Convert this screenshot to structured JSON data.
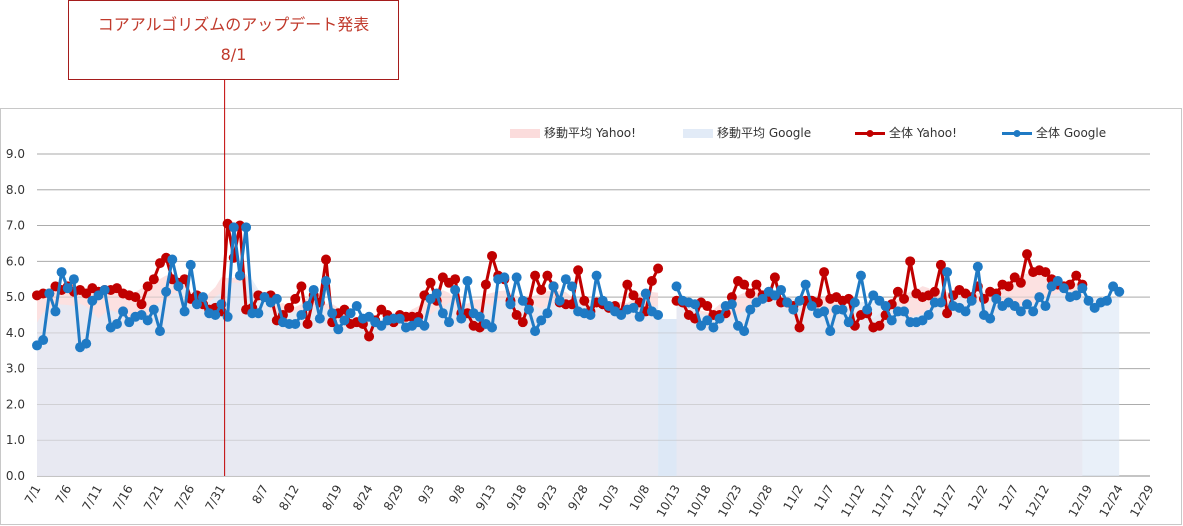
{
  "annotation": {
    "title": "コアアルゴリズムのアップデート発表",
    "date_label": "8/1"
  },
  "colors": {
    "yahoo_line": "#c00000",
    "google_line": "#1f7ac4",
    "yahoo_avg_fill": "#fbdcdc",
    "google_avg_fill": "#e2ebf7",
    "annotation_line": "#c00000"
  },
  "chart_data": {
    "type": "line",
    "title": "",
    "xlabel": "",
    "ylabel": "",
    "ylim": [
      0,
      9
    ],
    "grid": true,
    "legend_position": "top-right",
    "y_ticks": [
      "0.0",
      "1.0",
      "2.0",
      "3.0",
      "4.0",
      "5.0",
      "6.0",
      "7.0",
      "8.0",
      "9.0"
    ],
    "x_tick_labels": [
      "7/1",
      "7/6",
      "7/11",
      "7/16",
      "7/21",
      "7/26",
      "7/31",
      "8/7",
      "8/12",
      "8/19",
      "8/24",
      "8/29",
      "9/3",
      "9/8",
      "9/13",
      "9/18",
      "9/23",
      "9/28",
      "10/3",
      "10/8",
      "10/13",
      "10/18",
      "10/23",
      "10/28",
      "11/2",
      "11/7",
      "11/12",
      "11/17",
      "11/22",
      "11/27",
      "12/2",
      "12/7",
      "12/12",
      "12/19",
      "12/24",
      "12/29"
    ],
    "x_start": "7/1",
    "x_end": "12/29",
    "gap_range": [
      "10/10",
      "10/13"
    ],
    "annotation_x": "8/1",
    "series": [
      {
        "name": "全体 Yahoo!",
        "kind": "line",
        "values": [
          5.05,
          5.1,
          5.1,
          5.3,
          5.2,
          5.3,
          5.15,
          5.2,
          5.1,
          5.25,
          5.15,
          5.2,
          5.2,
          5.25,
          5.1,
          5.05,
          5.0,
          4.8,
          5.3,
          5.5,
          5.95,
          6.1,
          5.5,
          5.4,
          5.5,
          4.95,
          5.05,
          4.8,
          4.65,
          4.7,
          4.6,
          7.05,
          6.1,
          7.0,
          4.65,
          4.7,
          5.05,
          5.0,
          5.05,
          4.35,
          4.5,
          4.7,
          4.95,
          5.3,
          4.25,
          5.05,
          4.85,
          6.05,
          4.3,
          4.55,
          4.65,
          4.25,
          4.3,
          4.25,
          3.9,
          4.35,
          4.65,
          4.5,
          4.3,
          4.5,
          4.45,
          4.45,
          4.45,
          5.05,
          5.4,
          4.9,
          5.55,
          5.4,
          5.5,
          4.55,
          4.55,
          4.2,
          4.15,
          5.35,
          6.15,
          5.6,
          5.5,
          4.9,
          4.5,
          4.3,
          4.85,
          5.6,
          5.2,
          5.6,
          5.3,
          4.85,
          4.8,
          4.8,
          5.75,
          4.9,
          4.6,
          4.85,
          4.8,
          4.7,
          4.75,
          4.55,
          5.35,
          5.05,
          4.85,
          4.6,
          5.45,
          5.8,
          5.2,
          5.05,
          4.9,
          4.85,
          4.5,
          4.4,
          4.85,
          4.75,
          4.5,
          4.5,
          4.55,
          5.0,
          5.45,
          5.35,
          5.1,
          5.35,
          5.05,
          5.0,
          5.55,
          4.85,
          4.85,
          4.75,
          4.15,
          4.9,
          4.9,
          4.85,
          5.7,
          4.95,
          5.0,
          4.9,
          4.95,
          4.2,
          4.5,
          4.55,
          4.15,
          4.2,
          4.5,
          4.8,
          5.15,
          4.95,
          6.0,
          5.1,
          5.0,
          5.05,
          5.15,
          5.9,
          4.55,
          5.05,
          5.2,
          5.1,
          5.0,
          5.3,
          4.95,
          5.15,
          5.1,
          5.35,
          5.3,
          5.55,
          5.4,
          6.2,
          5.7,
          5.75,
          5.7,
          5.5,
          5.35,
          5.3,
          5.35,
          5.6,
          5.35
        ]
      },
      {
        "name": "全体 Google",
        "kind": "line",
        "values": [
          3.65,
          3.8,
          5.1,
          4.6,
          5.7,
          5.25,
          5.5,
          3.6,
          3.7,
          4.9,
          5.05,
          5.2,
          4.15,
          4.25,
          4.6,
          4.3,
          4.45,
          4.5,
          4.35,
          4.65,
          4.05,
          5.15,
          6.05,
          5.3,
          4.6,
          5.9,
          4.8,
          5.0,
          4.55,
          4.5,
          4.8,
          4.45,
          6.95,
          5.6,
          6.95,
          4.55,
          4.55,
          5.0,
          4.85,
          4.95,
          4.3,
          4.25,
          4.25,
          4.5,
          4.75,
          5.2,
          4.4,
          5.45,
          4.55,
          4.1,
          4.35,
          4.55,
          4.75,
          4.4,
          4.45,
          4.3,
          4.2,
          4.35,
          4.4,
          4.4,
          4.15,
          4.2,
          4.3,
          4.2,
          4.95,
          5.1,
          4.55,
          4.3,
          5.2,
          4.4,
          5.45,
          4.55,
          4.45,
          4.25,
          4.15,
          5.5,
          5.55,
          4.8,
          5.55,
          4.9,
          4.65,
          4.05,
          4.35,
          4.55,
          5.3,
          4.9,
          5.5,
          5.3,
          4.6,
          4.55,
          4.5,
          5.6,
          4.9,
          4.75,
          4.6,
          4.5,
          4.65,
          4.7,
          4.45,
          5.1,
          4.6,
          4.5,
          4.25,
          5.25,
          5.3,
          4.9,
          4.85,
          4.8,
          4.2,
          4.35,
          4.15,
          4.4,
          4.75,
          4.8,
          4.2,
          4.05,
          4.65,
          4.85,
          4.95,
          5.15,
          5.05,
          5.2,
          4.85,
          4.65,
          4.9,
          5.35,
          4.75,
          4.55,
          4.6,
          4.05,
          4.65,
          4.65,
          4.3,
          4.85,
          5.6,
          4.65,
          5.05,
          4.9,
          4.75,
          4.35,
          4.6,
          4.6,
          4.3,
          4.3,
          4.35,
          4.5,
          4.85,
          4.85,
          5.7,
          4.75,
          4.7,
          4.6,
          4.9,
          5.85,
          4.5,
          4.4,
          4.95,
          4.75,
          4.85,
          4.75,
          4.6,
          4.8,
          4.6,
          5.0,
          4.75,
          5.3,
          5.45,
          5.25,
          5.0,
          5.05,
          5.25,
          4.9,
          4.7,
          4.85,
          4.9,
          5.3,
          5.15
        ]
      },
      {
        "name": "移動平均 Yahoo!",
        "kind": "area"
      },
      {
        "name": "移動平均 Google",
        "kind": "area"
      }
    ]
  },
  "legend": [
    {
      "label": "移動平均 Yahoo!",
      "kind": "area",
      "color": "#fbdcdc"
    },
    {
      "label": "移動平均 Google",
      "kind": "area",
      "color": "#e2ebf7"
    },
    {
      "label": "全体 Yahoo!",
      "kind": "line",
      "color": "#c00000"
    },
    {
      "label": "全体 Google",
      "kind": "line",
      "color": "#1f7ac4"
    }
  ]
}
